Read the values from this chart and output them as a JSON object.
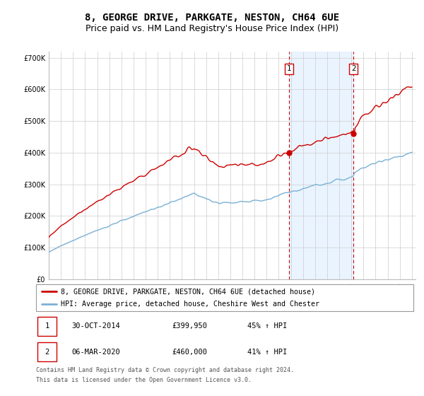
{
  "title": "8, GEORGE DRIVE, PARKGATE, NESTON, CH64 6UE",
  "subtitle": "Price paid vs. HM Land Registry's House Price Index (HPI)",
  "ylim": [
    0,
    720000
  ],
  "yticks": [
    0,
    100000,
    200000,
    300000,
    400000,
    500000,
    600000,
    700000
  ],
  "ytick_labels": [
    "£0",
    "£100K",
    "£200K",
    "£300K",
    "£400K",
    "£500K",
    "£600K",
    "£700K"
  ],
  "x_start_year": 1995,
  "x_end_year": 2025,
  "t1": 19.83,
  "t2": 25.17,
  "marker1_price": 399950,
  "marker2_price": 460000,
  "red_line_color": "#cc0000",
  "blue_line_color": "#7ab0d4",
  "background_shading_color": "#ddeeff",
  "marker_box_color": "#cc0000",
  "legend_line1": "8, GEORGE DRIVE, PARKGATE, NESTON, CH64 6UE (detached house)",
  "legend_line2": "HPI: Average price, detached house, Cheshire West and Chester",
  "table_row1": [
    "1",
    "30-OCT-2014",
    "£399,950",
    "45% ↑ HPI"
  ],
  "table_row2": [
    "2",
    "06-MAR-2020",
    "£460,000",
    "41% ↑ HPI"
  ],
  "footnote1": "Contains HM Land Registry data © Crown copyright and database right 2024.",
  "footnote2": "This data is licensed under the Open Government Licence v3.0.",
  "title_fontsize": 10,
  "subtitle_fontsize": 9,
  "tick_fontsize": 7,
  "legend_fontsize": 8
}
